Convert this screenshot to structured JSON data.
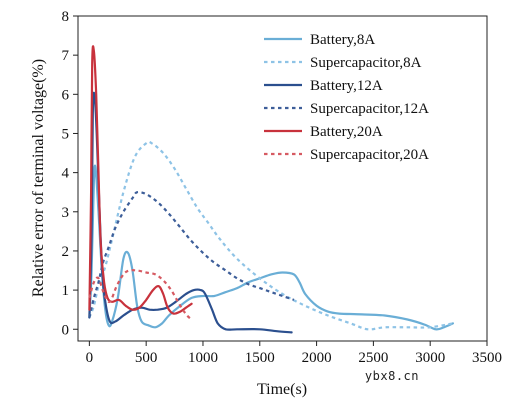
{
  "watermark": "ybx8.cn",
  "chart_data": {
    "type": "line",
    "title": "",
    "xlabel": "Time(s)",
    "ylabel": "Relative error of terminal voltage(%)",
    "xlim": [
      -100,
      3500
    ],
    "ylim": [
      -0.3,
      8
    ],
    "xticks": [
      0,
      500,
      1000,
      1500,
      2000,
      2500,
      3000,
      3500
    ],
    "yticks": [
      0,
      1,
      2,
      3,
      4,
      5,
      6,
      7,
      8
    ],
    "grid": false,
    "legend_position": "top-right",
    "series": [
      {
        "name": "Battery,8A",
        "color": "#6aaed6",
        "dash": "solid",
        "points": [
          [
            0,
            0.3
          ],
          [
            20,
            1.5
          ],
          [
            40,
            3.8
          ],
          [
            55,
            4.1
          ],
          [
            80,
            3
          ],
          [
            110,
            1.5
          ],
          [
            140,
            0.5
          ],
          [
            170,
            0.1
          ],
          [
            200,
            0.2
          ],
          [
            250,
            0.8
          ],
          [
            300,
            1.8
          ],
          [
            340,
            1.95
          ],
          [
            380,
            1.5
          ],
          [
            420,
            0.6
          ],
          [
            460,
            0.2
          ],
          [
            520,
            0.1
          ],
          [
            580,
            0.05
          ],
          [
            640,
            0.15
          ],
          [
            700,
            0.35
          ],
          [
            800,
            0.6
          ],
          [
            900,
            0.8
          ],
          [
            1000,
            0.85
          ],
          [
            1100,
            0.85
          ],
          [
            1200,
            0.95
          ],
          [
            1300,
            1.05
          ],
          [
            1400,
            1.2
          ],
          [
            1500,
            1.3
          ],
          [
            1600,
            1.4
          ],
          [
            1700,
            1.45
          ],
          [
            1800,
            1.4
          ],
          [
            1850,
            1.2
          ],
          [
            1900,
            0.9
          ],
          [
            2000,
            0.6
          ],
          [
            2100,
            0.45
          ],
          [
            2200,
            0.4
          ],
          [
            2400,
            0.38
          ],
          [
            2600,
            0.35
          ],
          [
            2800,
            0.25
          ],
          [
            2950,
            0.12
          ],
          [
            3050,
            0.0
          ],
          [
            3120,
            0.05
          ],
          [
            3200,
            0.15
          ]
        ]
      },
      {
        "name": "Supercapacitor,8A",
        "color": "#8ec3e6",
        "dash": "dashed",
        "points": [
          [
            0,
            0.3
          ],
          [
            40,
            0.6
          ],
          [
            80,
            1.1
          ],
          [
            140,
            1.6
          ],
          [
            200,
            2.3
          ],
          [
            300,
            3.5
          ],
          [
            400,
            4.4
          ],
          [
            500,
            4.75
          ],
          [
            550,
            4.75
          ],
          [
            650,
            4.5
          ],
          [
            750,
            4.1
          ],
          [
            850,
            3.6
          ],
          [
            950,
            3.1
          ],
          [
            1050,
            2.7
          ],
          [
            1150,
            2.3
          ],
          [
            1300,
            1.8
          ],
          [
            1500,
            1.3
          ],
          [
            1700,
            0.9
          ],
          [
            1900,
            0.6
          ],
          [
            2100,
            0.35
          ],
          [
            2300,
            0.15
          ],
          [
            2450,
            0.0
          ],
          [
            2600,
            0.05
          ],
          [
            2800,
            0.05
          ],
          [
            3000,
            0.05
          ],
          [
            3200,
            0.15
          ]
        ]
      },
      {
        "name": "Battery,12A",
        "color": "#2b4f8e",
        "dash": "solid",
        "points": [
          [
            0,
            0.3
          ],
          [
            20,
            2.5
          ],
          [
            30,
            5.5
          ],
          [
            45,
            6
          ],
          [
            65,
            5
          ],
          [
            90,
            3
          ],
          [
            115,
            1.4
          ],
          [
            140,
            0.7
          ],
          [
            180,
            0.2
          ],
          [
            230,
            0.2
          ],
          [
            300,
            0.35
          ],
          [
            380,
            0.5
          ],
          [
            460,
            0.55
          ],
          [
            530,
            0.5
          ],
          [
            600,
            0.5
          ],
          [
            680,
            0.55
          ],
          [
            760,
            0.7
          ],
          [
            850,
            0.9
          ],
          [
            920,
            1.0
          ],
          [
            980,
            1.0
          ],
          [
            1020,
            0.9
          ],
          [
            1080,
            0.5
          ],
          [
            1130,
            0.15
          ],
          [
            1200,
            0.0
          ],
          [
            1300,
            0.0
          ],
          [
            1500,
            0.0
          ],
          [
            1650,
            -0.05
          ],
          [
            1780,
            -0.08
          ]
        ]
      },
      {
        "name": "Supercapacitor,12A",
        "color": "#3d5e99",
        "dash": "dashed",
        "points": [
          [
            0,
            0.3
          ],
          [
            40,
            0.8
          ],
          [
            80,
            1.2
          ],
          [
            120,
            1.7
          ],
          [
            170,
            2.1
          ],
          [
            230,
            2.6
          ],
          [
            300,
            3.0
          ],
          [
            380,
            3.35
          ],
          [
            420,
            3.5
          ],
          [
            500,
            3.45
          ],
          [
            600,
            3.25
          ],
          [
            700,
            2.95
          ],
          [
            800,
            2.6
          ],
          [
            900,
            2.25
          ],
          [
            1000,
            1.95
          ],
          [
            1100,
            1.7
          ],
          [
            1200,
            1.5
          ],
          [
            1300,
            1.3
          ],
          [
            1400,
            1.15
          ],
          [
            1500,
            1.05
          ],
          [
            1600,
            0.95
          ],
          [
            1700,
            0.85
          ],
          [
            1800,
            0.75
          ]
        ]
      },
      {
        "name": "Battery,20A",
        "color": "#c8323c",
        "dash": "solid",
        "points": [
          [
            0,
            0.5
          ],
          [
            15,
            3.5
          ],
          [
            25,
            6.8
          ],
          [
            40,
            7.1
          ],
          [
            60,
            6
          ],
          [
            80,
            4
          ],
          [
            100,
            2.2
          ],
          [
            130,
            1.2
          ],
          [
            160,
            0.8
          ],
          [
            200,
            0.7
          ],
          [
            260,
            0.75
          ],
          [
            320,
            0.6
          ],
          [
            380,
            0.5
          ],
          [
            440,
            0.55
          ],
          [
            500,
            0.75
          ],
          [
            560,
            1.0
          ],
          [
            610,
            1.1
          ],
          [
            650,
            0.9
          ],
          [
            690,
            0.55
          ],
          [
            740,
            0.4
          ],
          [
            800,
            0.45
          ],
          [
            850,
            0.55
          ],
          [
            900,
            0.65
          ]
        ]
      },
      {
        "name": "Supercapacitor,20A",
        "color": "#d65a62",
        "dash": "dashed",
        "points": [
          [
            0,
            0.8
          ],
          [
            40,
            1.2
          ],
          [
            80,
            1.3
          ],
          [
            130,
            0.9
          ],
          [
            180,
            0.7
          ],
          [
            240,
            1.1
          ],
          [
            300,
            1.4
          ],
          [
            350,
            1.5
          ],
          [
            420,
            1.5
          ],
          [
            500,
            1.45
          ],
          [
            580,
            1.4
          ],
          [
            650,
            1.25
          ],
          [
            720,
            1.0
          ],
          [
            800,
            0.6
          ],
          [
            860,
            0.35
          ],
          [
            900,
            0.25
          ]
        ]
      }
    ]
  }
}
